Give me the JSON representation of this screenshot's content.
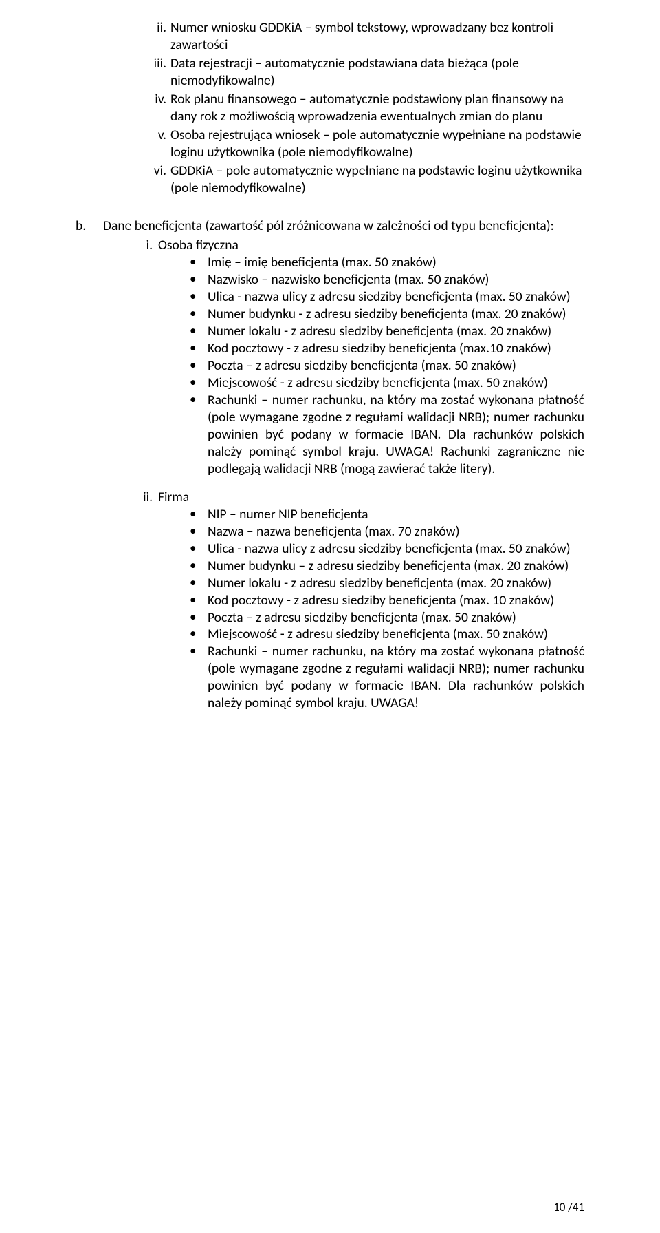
{
  "top_roman": [
    {
      "marker": "ii.",
      "text": "Numer wniosku GDDKiA – symbol tekstowy, wprowadzany bez kontroli zawartości"
    },
    {
      "marker": "iii.",
      "text": "Data rejestracji – automatycznie podstawiana data bieżąca (pole niemodyfikowalne)"
    },
    {
      "marker": "iv.",
      "text": "Rok planu finansowego – automatycznie podstawiony plan finansowy na dany rok  z możliwością wprowadzenia ewentualnych zmian do planu"
    },
    {
      "marker": "v.",
      "text": "Osoba rejestrująca wniosek – pole automatycznie wypełniane na podstawie loginu użytkownika (pole niemodyfikowalne)"
    },
    {
      "marker": "vi.",
      "text": "GDDKiA – pole automatycznie wypełniane na podstawie loginu użytkownika (pole niemodyfikowalne)"
    }
  ],
  "section_b": {
    "marker": "b.",
    "heading_underlined": "Dane beneficjenta (zawartość pól zróżnicowana w zależności od typu beneficjenta):",
    "items": [
      {
        "marker": "i.",
        "label": "Osoba fizyczna",
        "bullets": [
          "Imię – imię beneficjenta (max. 50 znaków)",
          "Nazwisko – nazwisko beneficjenta (max. 50 znaków)",
          "Ulica - nazwa ulicy z adresu siedziby beneficjenta (max. 50 znaków)",
          "Numer budynku - z adresu siedziby beneficjenta (max. 20 znaków)",
          "Numer lokalu - z adresu siedziby beneficjenta (max. 20 znaków)",
          "Kod pocztowy - z adresu siedziby beneficjenta (max.10 znaków)",
          "Poczta – z adresu siedziby beneficjenta (max. 50 znaków)",
          "Miejscowość - z adresu siedziby beneficjenta (max. 50 znaków)",
          "Rachunki – numer rachunku, na który ma zostać wykonana płatność (pole wymagane zgodne z regułami walidacji NRB); numer rachunku powinien być podany w formacie IBAN. Dla rachunków polskich należy pominąć symbol kraju. UWAGA! Rachunki zagraniczne nie podlegają walidacji NRB (mogą zawierać także litery)."
        ]
      },
      {
        "marker": "ii.",
        "label": "Firma",
        "bullets": [
          "NIP – numer NIP beneficjenta",
          "Nazwa – nazwa beneficjenta (max. 70 znaków)",
          "Ulica - nazwa ulicy z adresu siedziby beneficjenta (max. 50 znaków)",
          "Numer budynku – z adresu siedziby beneficjenta (max. 20 znaków)",
          "Numer lokalu - z adresu siedziby beneficjenta (max. 20 znaków)",
          "Kod pocztowy - z adresu siedziby beneficjenta (max. 10 znaków)",
          "Poczta – z adresu siedziby beneficjenta (max. 50 znaków)",
          "Miejscowość - z adresu siedziby beneficjenta (max. 50 znaków)",
          "Rachunki – numer rachunku, na który ma zostać wykonana płatność (pole wymagane zgodne z regułami walidacji NRB); numer rachunku powinien być podany w formacie IBAN. Dla rachunków polskich należy pominąć symbol kraju. UWAGA!"
        ]
      }
    ]
  },
  "footer": "10 /41"
}
